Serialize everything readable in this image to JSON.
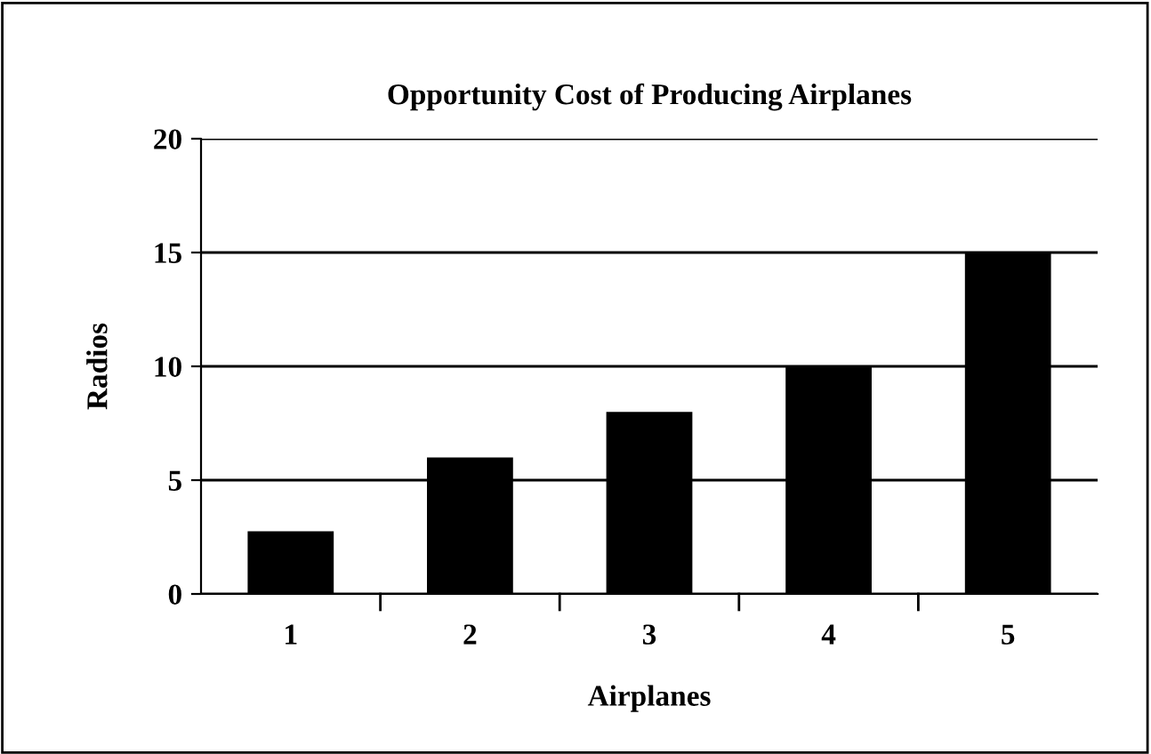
{
  "chart_data": {
    "type": "bar",
    "title": "Opportunity Cost of Producing Airplanes",
    "xlabel": "Airplanes",
    "ylabel": "Radios",
    "categories": [
      "1",
      "2",
      "3",
      "4",
      "5"
    ],
    "values": [
      2.75,
      6,
      8,
      10,
      15
    ],
    "color": "#000000",
    "ylim": [
      0,
      20
    ],
    "yticks": [
      0,
      5,
      10,
      15,
      20
    ],
    "grid": "y",
    "legend": false
  }
}
